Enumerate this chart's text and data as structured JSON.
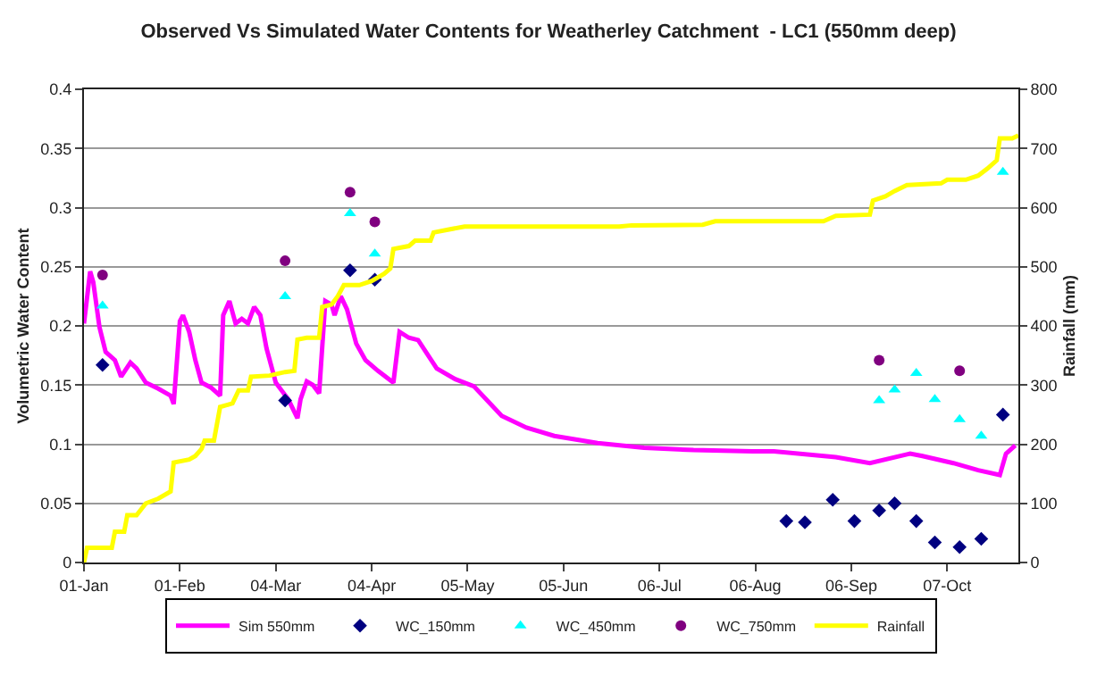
{
  "chart_data": {
    "type": "line",
    "title": "Observed Vs Simulated Water Contents for Weatherley Catchment  - LC1 (550mm deep)",
    "ylabel": "Volumetric Water Content",
    "y2label": "Rainfall (mm)",
    "xlim": [
      "--01-01",
      "--10-30"
    ],
    "xticks": [
      {
        "value": "--01-01",
        "label": "01-Jan"
      },
      {
        "value": "--02-01",
        "label": "01-Feb"
      },
      {
        "value": "--03-04",
        "label": "04-Mar"
      },
      {
        "value": "--04-04",
        "label": "04-Apr"
      },
      {
        "value": "--05-05",
        "label": "05-May"
      },
      {
        "value": "--06-05",
        "label": "05-Jun"
      },
      {
        "value": "--07-06",
        "label": "06-Jul"
      },
      {
        "value": "--08-06",
        "label": "06-Aug"
      },
      {
        "value": "--09-06",
        "label": "06-Sep"
      },
      {
        "value": "--10-07",
        "label": "07-Oct"
      }
    ],
    "ylim": [
      0,
      0.4
    ],
    "yticks": [
      0,
      0.05,
      0.1,
      0.15,
      0.2,
      0.25,
      0.3,
      0.35,
      0.4
    ],
    "y2lim": [
      0,
      800
    ],
    "y2ticks": [
      0,
      100,
      200,
      300,
      400,
      500,
      600,
      700,
      800
    ],
    "grid": "y",
    "legend": "bottom",
    "series": [
      {
        "name": "Sim 550mm",
        "marker": "none",
        "color": "#ff00ff",
        "x": [
          "--01-01",
          "--01-03",
          "--01-04",
          "--01-06",
          "--01-08",
          "--01-11",
          "--01-13",
          "--01-16",
          "--01-18",
          "--01-21",
          "--01-25",
          "--01-29",
          "--01-30",
          "--02-01",
          "--02-02",
          "--02-04",
          "--02-06",
          "--02-08",
          "--02-11",
          "--02-14",
          "--02-15",
          "--02-17",
          "--02-19",
          "--02-21",
          "--02-23",
          "--02-25",
          "--02-27",
          "--03-01",
          "--03-04",
          "--03-06",
          "--03-08",
          "--03-11",
          "--03-12",
          "--03-14",
          "--03-16",
          "--03-18",
          "--03-20",
          "--03-22",
          "--03-23",
          "--03-25",
          "--03-27",
          "--03-30",
          "--04-02",
          "--04-06",
          "--04-11",
          "--04-13",
          "--04-16",
          "--04-19",
          "--04-25",
          "--05-01",
          "--05-07",
          "--05-16",
          "--05-24",
          "--06-02",
          "--06-16",
          "--07-01",
          "--07-17",
          "--08-05",
          "--08-12",
          "--09-01",
          "--09-12",
          "--09-25",
          "--09-29",
          "--10-09",
          "--10-17",
          "--10-24",
          "--10-26",
          "--10-29"
        ],
        "values": [
          0.202,
          0.246,
          0.237,
          0.199,
          0.178,
          0.171,
          0.157,
          0.169,
          0.164,
          0.152,
          0.147,
          0.141,
          0.134,
          0.204,
          0.209,
          0.195,
          0.171,
          0.152,
          0.148,
          0.141,
          0.209,
          0.221,
          0.202,
          0.206,
          0.202,
          0.216,
          0.209,
          0.181,
          0.152,
          0.145,
          0.138,
          0.122,
          0.138,
          0.153,
          0.15,
          0.143,
          0.221,
          0.218,
          0.209,
          0.225,
          0.214,
          0.185,
          0.171,
          0.162,
          0.152,
          0.195,
          0.19,
          0.188,
          0.164,
          0.155,
          0.149,
          0.124,
          0.114,
          0.107,
          0.101,
          0.097,
          0.095,
          0.094,
          0.094,
          0.089,
          0.084,
          0.092,
          0.09,
          0.084,
          0.078,
          0.074,
          0.092,
          0.099
        ]
      },
      {
        "name": "WC_150mm",
        "type": "scatter",
        "marker": "diamond",
        "color": "#000080",
        "x": [
          "--01-07",
          "--03-07",
          "--03-28",
          "--04-05",
          "--08-16",
          "--08-22",
          "--08-31",
          "--09-07",
          "--09-15",
          "--09-20",
          "--09-27",
          "--10-03",
          "--10-11",
          "--10-18",
          "--10-25"
        ],
        "values": [
          0.167,
          0.137,
          0.247,
          0.239,
          0.035,
          0.034,
          0.053,
          0.035,
          0.044,
          0.05,
          0.035,
          0.017,
          0.013,
          0.02,
          0.125
        ]
      },
      {
        "name": "WC_450mm",
        "type": "scatter",
        "marker": "triangle",
        "color": "#00ffff",
        "x": [
          "--01-07",
          "--03-07",
          "--03-28",
          "--04-05",
          "--09-15",
          "--09-20",
          "--09-27",
          "--10-03",
          "--10-11",
          "--10-18",
          "--10-25"
        ],
        "values": [
          0.217,
          0.225,
          0.295,
          0.261,
          0.137,
          0.146,
          0.16,
          0.138,
          0.121,
          0.107,
          0.33
        ]
      },
      {
        "name": "WC_750mm",
        "type": "scatter",
        "marker": "circle",
        "color": "#800080",
        "x": [
          "--01-07",
          "--03-07",
          "--03-28",
          "--04-05",
          "--09-15",
          "--10-11"
        ],
        "values": [
          0.243,
          0.255,
          0.313,
          0.288,
          0.171,
          0.162
        ]
      },
      {
        "name": "Rainfall",
        "marker": "none",
        "axis": "y2",
        "color": "#ffff00",
        "x": [
          "--01-01",
          "--01-02",
          "--01-10",
          "--01-11",
          "--01-14",
          "--01-15",
          "--01-18",
          "--01-21",
          "--01-25",
          "--01-29",
          "--01-30",
          "--02-04",
          "--02-06",
          "--02-08",
          "--02-09",
          "--02-12",
          "--02-14",
          "--02-18",
          "--02-20",
          "--02-23",
          "--02-24",
          "--03-02",
          "--03-07",
          "--03-10",
          "--03-11",
          "--03-14",
          "--03-18",
          "--03-19",
          "--03-22",
          "--03-24",
          "--03-26",
          "--03-31",
          "--04-04",
          "--04-08",
          "--04-10",
          "--04-11",
          "--04-16",
          "--04-18",
          "--04-23",
          "--04-24",
          "--04-29",
          "--05-04",
          "--06-23",
          "--06-27",
          "--07-20",
          "--07-24",
          "--08-28",
          "--09-01",
          "--09-12",
          "--09-13",
          "--09-17",
          "--09-20",
          "--09-24",
          "--10-05",
          "--10-07",
          "--10-13",
          "--10-17",
          "--10-20",
          "--10-23",
          "--10-24",
          "--10-28",
          "--10-30"
        ],
        "values": [
          0,
          25,
          25,
          52,
          52,
          80,
          80,
          100,
          108,
          120,
          169,
          174,
          180,
          192,
          206,
          206,
          263,
          269,
          291,
          291,
          314,
          316,
          322,
          324,
          377,
          380,
          380,
          432,
          436,
          450,
          469,
          469,
          476,
          488,
          497,
          530,
          535,
          544,
          544,
          558,
          563,
          568,
          568,
          570,
          571,
          577,
          577,
          586,
          588,
          612,
          619,
          628,
          638,
          641,
          647,
          647,
          654,
          666,
          680,
          717,
          717,
          722
        ]
      }
    ]
  }
}
